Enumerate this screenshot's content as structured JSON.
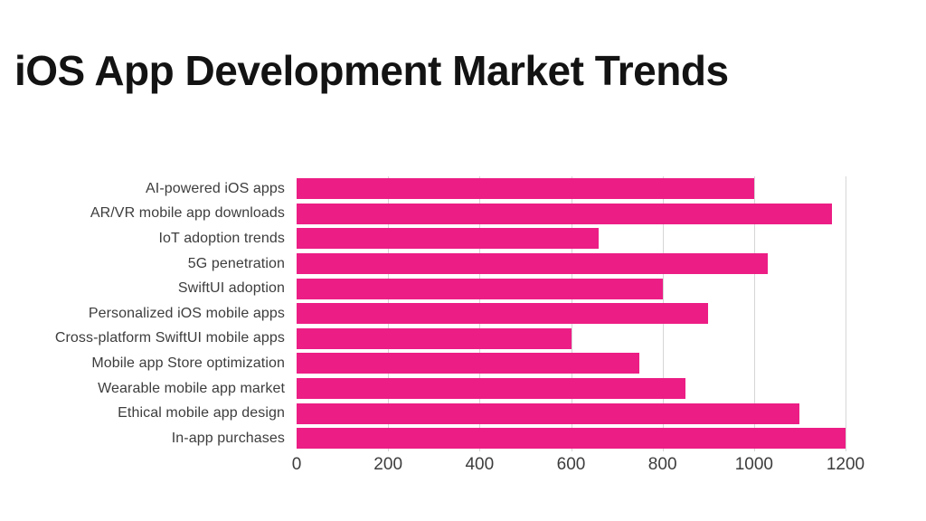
{
  "title": "iOS App Development Market Trends",
  "chart_data": {
    "type": "bar",
    "orientation": "horizontal",
    "title": "iOS App Development Market Trends",
    "categories": [
      "AI-powered iOS apps",
      "AR/VR mobile app downloads",
      "IoT adoption trends",
      "5G penetration",
      "SwiftUI adoption",
      "Personalized iOS mobile apps",
      "Cross-platform SwiftUI mobile apps",
      "Mobile app Store optimization",
      "Wearable mobile app market",
      "Ethical mobile app design",
      "In-app purchases"
    ],
    "values": [
      1000,
      1170,
      660,
      1030,
      800,
      900,
      600,
      750,
      850,
      1100,
      1200
    ],
    "xlabel": "",
    "ylabel": "",
    "xlim": [
      0,
      1200
    ],
    "xticks": [
      0,
      200,
      400,
      600,
      800,
      1000,
      1200
    ],
    "grid": "vertical-only",
    "legend": "none",
    "colors": {
      "bar": "#EC1D85",
      "gridline": "#D6D6D6",
      "category_label": "#3D3D3D",
      "tick_label": "#3D3D3D",
      "title": "#131313",
      "background": "#FFFFFF"
    }
  }
}
